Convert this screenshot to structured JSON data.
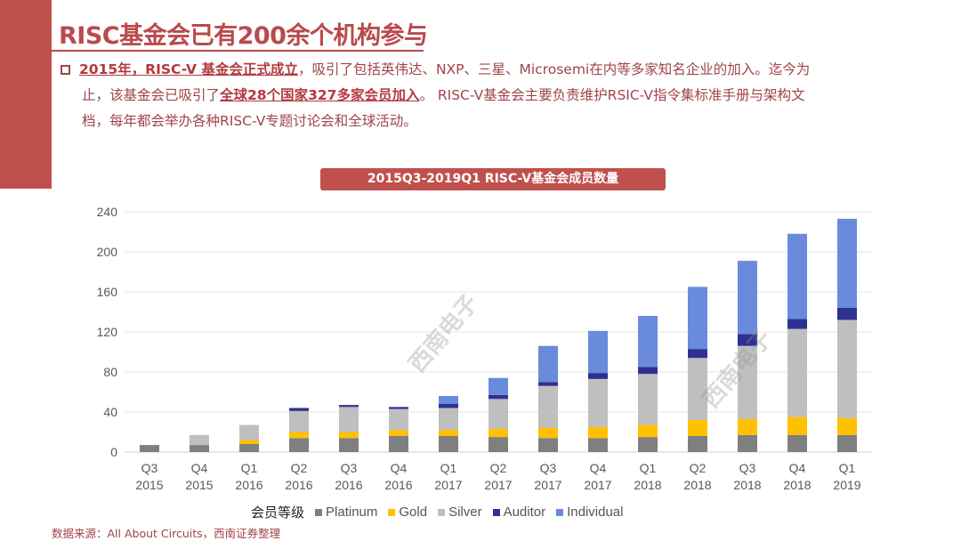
{
  "header": {
    "title": "RISC基金会已有200余个机构参与"
  },
  "body": {
    "p1_bold": "2015年，RISC-V 基金会正式成立",
    "p1_rest": "，吸引了包括英伟达、NXP、三星、Microsemi在内等多家知名企业的加入。迄今为",
    "p2_pre": "止，该基金会已吸引了",
    "p2_bold": "全球28个国家327多家会员加入",
    "p2_rest": "。 RISC-V基金会主要负责维护RSIC-V指令集标准手册与架构文",
    "p3": "档，每年都会举办各种RISC-V专题讨论会和全球活动。"
  },
  "watermark": "西南电子",
  "chart_data": {
    "type": "bar",
    "stacked": true,
    "title": "2015Q3-2019Q1 RISC-V基金会成员数量",
    "categories": [
      "Q3\n2015",
      "Q4\n2015",
      "Q1\n2016",
      "Q2\n2016",
      "Q3\n2016",
      "Q4\n2016",
      "Q1\n2017",
      "Q2\n2017",
      "Q3\n2017",
      "Q4\n2017",
      "Q1\n2018",
      "Q2\n2018",
      "Q3\n2018",
      "Q4\n2018",
      "Q1\n2019"
    ],
    "category_labels": [
      [
        "Q3",
        "2015"
      ],
      [
        "Q4",
        "2015"
      ],
      [
        "Q1",
        "2016"
      ],
      [
        "Q2",
        "2016"
      ],
      [
        "Q3",
        "2016"
      ],
      [
        "Q4",
        "2016"
      ],
      [
        "Q1",
        "2017"
      ],
      [
        "Q2",
        "2017"
      ],
      [
        "Q3",
        "2017"
      ],
      [
        "Q4",
        "2017"
      ],
      [
        "Q1",
        "2018"
      ],
      [
        "Q2",
        "2018"
      ],
      [
        "Q3",
        "2018"
      ],
      [
        "Q4",
        "2018"
      ],
      [
        "Q1",
        "2019"
      ]
    ],
    "series": [
      {
        "name": "Platinum",
        "color": "#7f7f7f",
        "values": [
          7,
          7,
          8,
          14,
          14,
          16,
          16,
          15,
          14,
          14,
          15,
          16,
          17,
          17,
          17
        ]
      },
      {
        "name": "Gold",
        "color": "#ffc000",
        "values": [
          0,
          0,
          4,
          6,
          6,
          6,
          6,
          8,
          10,
          11,
          12,
          16,
          16,
          18,
          17
        ]
      },
      {
        "name": "Silver",
        "color": "#bfbfbf",
        "values": [
          0,
          10,
          15,
          21,
          25,
          21,
          22,
          30,
          42,
          48,
          51,
          62,
          73,
          88,
          98
        ]
      },
      {
        "name": "Auditor",
        "color": "#2e3192",
        "values": [
          0,
          0,
          0,
          3,
          2,
          2,
          4,
          4,
          4,
          6,
          7,
          9,
          12,
          10,
          12
        ]
      },
      {
        "name": "Individual",
        "color": "#6a8bdb",
        "values": [
          0,
          0,
          0,
          0,
          0,
          0,
          8,
          17,
          36,
          42,
          51,
          62,
          73,
          85,
          89
        ]
      }
    ],
    "legend_title": "会员等级",
    "legend_position": "bottom",
    "yticks": [
      0,
      40,
      80,
      120,
      160,
      200,
      240
    ],
    "ylim": [
      0,
      240
    ],
    "grid": true
  },
  "footer": {
    "source": "数据来源：All About Circuits，西南证券整理"
  }
}
